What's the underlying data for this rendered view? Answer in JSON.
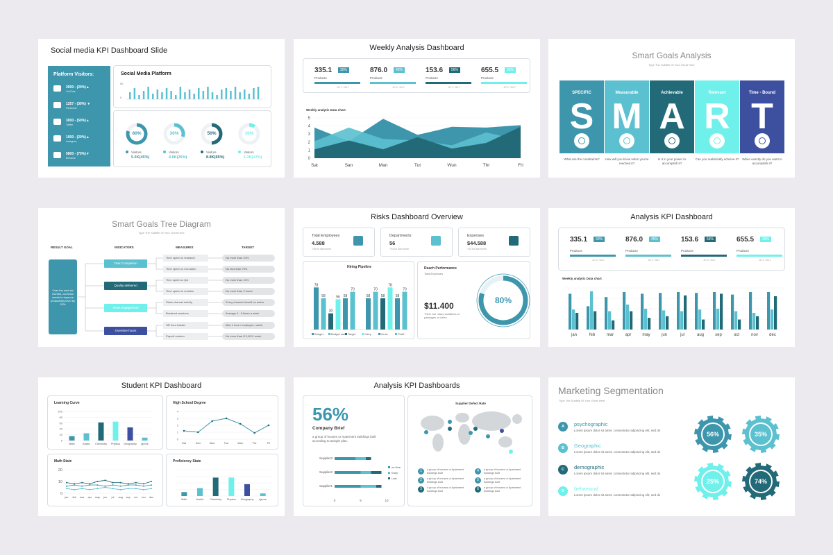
{
  "slides": {
    "social": {
      "title": "Social media KPI Dashboard Slide",
      "visitors_title": "Platform Visitors:",
      "platforms": [
        {
          "value": "2000 - (20%)▲",
          "name": "YouTube",
          "icon": "youtube-icon"
        },
        {
          "value": "1257 - (30%) ▼",
          "name": "Facebook",
          "icon": "facebook-icon"
        },
        {
          "value": "3000 - (50%)▲",
          "name": "Twitter",
          "icon": "twitter-icon"
        },
        {
          "value": "1000 - (20%)▲",
          "name": "Instagram",
          "icon": "instagram-icon"
        },
        {
          "value": "5800 - (70%)▼",
          "name": "Behance",
          "icon": "behance-icon"
        }
      ],
      "platform_chart_title": "Social Media Platform",
      "platform_axis": [
        "50",
        "0"
      ],
      "platform_bars": [
        0.5,
        0.8,
        0.3,
        0.6,
        0.9,
        0.4,
        0.7,
        0.5,
        0.8,
        0.6,
        0.3,
        0.9,
        0.5,
        0.7,
        0.4,
        0.8,
        0.6,
        0.9,
        0.5,
        0.3,
        0.7,
        0.8,
        0.6,
        0.9,
        0.5,
        0.7,
        0.4,
        0.8,
        0.9
      ],
      "donuts": [
        {
          "pct": "80%",
          "value": 0.8,
          "label": "Visitors",
          "stat": "5.6K(45%)",
          "color": "#3e96ad"
        },
        {
          "pct": "30%",
          "value": 0.3,
          "label": "Visitors",
          "stat": "4.6K(25%)",
          "color": "#5bc0cf"
        },
        {
          "pct": "50%",
          "value": 0.5,
          "label": "Visitors",
          "stat": "8.8K(65%)",
          "color": "#236a78"
        },
        {
          "pct": "10%",
          "value": 0.1,
          "label": "Visitors",
          "stat": "1.3K(12%)",
          "color": "#70f0ea"
        }
      ]
    },
    "weekly": {
      "title": "Weekly Analysis Dashboard",
      "kpis": [
        {
          "value": "335.1",
          "badge": "30%",
          "label": "Products",
          "foot": "-67.1 +34.7",
          "color": "#3e96ad"
        },
        {
          "value": "876.0",
          "badge": "45%",
          "label": "Products",
          "foot": "-67.1 +34.7",
          "color": "#5bc0cf"
        },
        {
          "value": "153.6",
          "badge": "56%",
          "label": "Products",
          "foot": "-67.1 +34.7",
          "color": "#236a78"
        },
        {
          "value": "655.5",
          "badge": "33%",
          "label": "Products",
          "foot": "-67.1 +34.7",
          "color": "#70f0ea"
        }
      ],
      "chart_label": "Weekly analytic Data chart",
      "chart_data": {
        "type": "area",
        "categories": [
          "Sat",
          "San",
          "Man",
          "Tut",
          "Wun",
          "Thr",
          "Fri"
        ],
        "yticks": [
          "5",
          "4",
          "3",
          "2",
          "1",
          "0"
        ],
        "ylim": [
          0,
          5
        ],
        "series": [
          {
            "values": [
              3.8,
              2.1,
              4.9,
              2.9,
              3.9,
              3.8,
              4.1
            ],
            "color": "#3e96ad"
          },
          {
            "values": [
              2.1,
              3.8,
              2.4,
              2.2,
              1.6,
              3.2,
              2.2
            ],
            "color": "#5bc0cf"
          },
          {
            "values": [
              1.1,
              2.2,
              1.1,
              2.6,
              1.2,
              1.9,
              3.9
            ],
            "color": "#236a78"
          }
        ]
      }
    },
    "smart": {
      "title": "Smart Goals Analysis",
      "subtitle": "Type The Subtitle Of Your Great Here",
      "cols": [
        {
          "head": "SPECIFIC",
          "letter": "S",
          "q": "What are the constraints?",
          "color": "#3e96ad",
          "icon": "target-icon"
        },
        {
          "head": "Measurable",
          "letter": "M",
          "q": "How will you know when you've reached it?",
          "color": "#5bc0cf",
          "icon": "bar-chart-icon"
        },
        {
          "head": "Achievable",
          "letter": "A",
          "q": "Is it in your power to accomplish it?",
          "color": "#236a78",
          "icon": "gear-icon"
        },
        {
          "head": "Relevant",
          "letter": "R",
          "q": "Can you realistically achieve it?",
          "color": "#70f0ea",
          "icon": "lightbulb-icon"
        },
        {
          "head": "Time - Bound",
          "letter": "T",
          "q": "When exactly do you want to accomplish it?",
          "color": "#3d50a0",
          "icon": "clock-icon"
        }
      ]
    },
    "tree": {
      "title": "Smart Goals Tree Diagram",
      "subtitle": "Type The Subtitle Of Your Great Here",
      "headers": [
        "RESULT GOAL",
        "INDICATORS",
        "MEASURES",
        "TARGET"
      ],
      "goal": "Over the next six months, our team needs to improve productivity level by 20%",
      "indicators": [
        {
          "label": "Task Completion",
          "color": "#5bc0cf"
        },
        {
          "label": "Quality delivered",
          "color": "#236a78"
        },
        {
          "label": "Team engagement",
          "color": "#70f0ea"
        },
        {
          "label": "Overtime hours",
          "color": "#3d50a0"
        }
      ],
      "measures": [
        "Time spent on research",
        "Time spent on execution",
        "Time spent on QA",
        "Time spent on revision",
        "Slack channel activity",
        "Breakout sessions",
        "HR hour tracker",
        "Payroll number"
      ],
      "targets": [
        "No more than 20%",
        "No less than 75%",
        "No more than 10%",
        "No more than 2 hours",
        "Every channel should be active",
        "Average 4 - 6 times a week",
        "Max 1 hour / employee / week",
        "No more than $ 3,000 / week"
      ]
    },
    "risks": {
      "title": "Risks Dashboard Overview",
      "cards": [
        {
          "label": "Total Employees",
          "value": "4.588",
          "foot": "+34 for last month",
          "icon": "org-chart-icon"
        },
        {
          "label": "Departments",
          "value": "56",
          "foot": "+34 for last month",
          "icon": "building-icon"
        },
        {
          "label": "Expenses",
          "value": "$44.588",
          "foot": "+34 for last month",
          "icon": "dollar-icon"
        }
      ],
      "pipeline_title": "Hiring Pipeline",
      "pipeline_data": {
        "type": "bar",
        "groups": [
          {
            "values": [
              78,
              58,
              30,
              56,
              58,
              70
            ]
          },
          {
            "values": [
              58,
              70,
              58,
              78,
              58,
              70
            ]
          }
        ],
        "ylim": [
          0,
          90
        ]
      },
      "legend": [
        "Budget",
        "Budget used",
        "Target",
        "Carry",
        "Grow",
        "Profit"
      ],
      "legend_colors": [
        "#3e96ad",
        "#5bc0cf",
        "#236a78",
        "#70f0ea",
        "#3e96ad",
        "#5bc0cf"
      ],
      "reach_title": "Reach Performance",
      "reach_sub": "Total Expenses",
      "reach_value": "$11.400",
      "reach_note": "There are many variations of passages of lorem",
      "reach_pct": "80%",
      "reach_fraction": 0.8
    },
    "analysis": {
      "title": "Analysis KPI Dashboard",
      "kpis": [
        {
          "value": "335.1",
          "badge": "30%",
          "label": "Products",
          "foot": "-67.1 +34.7",
          "color": "#3e96ad"
        },
        {
          "value": "876.0",
          "badge": "45%",
          "label": "Products",
          "foot": "-67.1 +34.7",
          "color": "#5bc0cf"
        },
        {
          "value": "153.6",
          "badge": "56%",
          "label": "Products",
          "foot": "-67.1 +34.7",
          "color": "#236a78"
        },
        {
          "value": "655.5",
          "badge": "33%",
          "label": "Products",
          "foot": "-67.1 +34.7",
          "color": "#70f0ea"
        }
      ],
      "chart_label": "Weekly analytic Data chart",
      "chart_data": {
        "type": "bar",
        "categories": [
          "jan",
          "feb",
          "mar",
          "apr",
          "may",
          "jun",
          "jul",
          "aug",
          "sep",
          "oct",
          "nov",
          "dec"
        ],
        "ylim": [
          0,
          5
        ],
        "series": [
          {
            "values": [
              4.3,
              2.8,
              3.9,
              4.5,
              4.3,
              4.4,
              4.5,
              4.4,
              4.5,
              4.2,
              4.5,
              4.5
            ],
            "color": "#3e96ad"
          },
          {
            "values": [
              2.4,
              4.6,
              2.2,
              3.0,
              2.5,
              2.3,
              2.2,
              2.4,
              2.5,
              2.2,
              2.0,
              2.4
            ],
            "color": "#5bc0cf"
          },
          {
            "values": [
              2.0,
              2.2,
              1.1,
              2.2,
              1.4,
              1.6,
              4.1,
              1.2,
              4.3,
              1.2,
              1.6,
              4.0
            ],
            "color": "#236a78"
          }
        ]
      }
    },
    "student": {
      "title": "Student KPI Dashboard",
      "learning": {
        "title": "Learning Curve",
        "chart_data": {
          "type": "bar",
          "categories": [
            "Math",
            "Arabic",
            "Chemistry",
            "Physics",
            "Geography",
            "Ignore"
          ],
          "values": [
            15,
            25,
            62,
            65,
            45,
            10
          ],
          "colors": [
            "#3e96ad",
            "#5bc0cf",
            "#236a78",
            "#70f0ea",
            "#3d50a0",
            "#5bc0cf"
          ],
          "ylim": [
            0,
            100
          ],
          "yticks": [
            "100",
            "80",
            "60",
            "40",
            "20",
            "0"
          ]
        }
      },
      "highschool": {
        "title": "High School Degree",
        "chart_data": {
          "type": "line",
          "categories": [
            "Sat",
            "San",
            "Mon",
            "Tue",
            "Wen",
            "Thr",
            "Fri"
          ],
          "values": [
            1.2,
            1.0,
            2.6,
            3.0,
            2.2,
            0.9,
            2.0
          ],
          "ylim": [
            0,
            4
          ],
          "yticks": [
            "4",
            "3",
            "2",
            "1",
            "0"
          ]
        }
      },
      "math": {
        "title": "Math State",
        "chart_data": {
          "type": "line",
          "categories": [
            "jan",
            "feb",
            "mar",
            "apr",
            "may",
            "jun",
            "jul",
            "aug",
            "sep",
            "oct",
            "nov",
            "dec"
          ],
          "series": [
            {
              "values": [
                9,
                8,
                9,
                8,
                10,
                11,
                9,
                9,
                8,
                9,
                8,
                10
              ],
              "color": "#236a78"
            },
            {
              "values": [
                6,
                7,
                6,
                7,
                7,
                6,
                7,
                6,
                7,
                7,
                6,
                7
              ],
              "color": "#3e96ad"
            },
            {
              "values": [
                4,
                3,
                4,
                3,
                4,
                5,
                4,
                3,
                4,
                4,
                3,
                4
              ],
              "color": "#5bc0cf"
            }
          ],
          "ylim": [
            0,
            20
          ],
          "yticks": [
            "20",
            "10",
            "0"
          ]
        }
      },
      "proficiency": {
        "title": "Proficiency State",
        "chart_data": {
          "type": "bar",
          "categories": [
            "Math",
            "Arabic",
            "Chemistry",
            "Physics",
            "Geography",
            "Ignore"
          ],
          "values": [
            15,
            30,
            70,
            70,
            45,
            10
          ],
          "colors": [
            "#3e96ad",
            "#5bc0cf",
            "#236a78",
            "#70f0ea",
            "#3d50a0",
            "#5bc0cf"
          ],
          "ylim": [
            0,
            100
          ]
        }
      }
    },
    "analysis2": {
      "title": "Analysis KPI Dashboards",
      "big": "56%",
      "brief": "Company Brief",
      "brief_text": "a group of houses or Apartment buildings built according to asingle plan.",
      "suppliers": [
        "Supplier3",
        "Supplier2",
        "Supplier1"
      ],
      "supplier_data": {
        "type": "bar",
        "series": [
          {
            "name": "on time",
            "values": [
              4,
              5,
              5
            ],
            "color": "#3e96ad"
          },
          {
            "name": "Early",
            "values": [
              2,
              2,
              3
            ],
            "color": "#5bc0cf"
          },
          {
            "name": "Late",
            "values": [
              1,
              2,
              1
            ],
            "color": "#236a78"
          }
        ],
        "xlim": [
          0,
          10
        ],
        "xticks": [
          "0",
          "5",
          "10"
        ]
      },
      "map_title": "Supplier Defect Rate",
      "map_items": [
        {
          "n": "1",
          "text": "a group of houses or Apartment buildings built"
        },
        {
          "n": "2",
          "text": "a group of houses or Apartment buildings built"
        },
        {
          "n": "3",
          "text": "a group of houses or Apartment buildings built"
        },
        {
          "n": "4",
          "text": "a group of houses or Apartment buildings built"
        },
        {
          "n": "5",
          "text": "a group of houses or Apartment buildings built"
        },
        {
          "n": "6",
          "text": "a group of houses or Apartment buildings built"
        }
      ]
    },
    "marketing": {
      "title": "Marketing Segmentation",
      "subtitle": "Type The Subtitle Of Your Great Here",
      "items": [
        {
          "letter": "A",
          "name": "psychographic",
          "text": "Lorem ipsum dolor sit amet, consectetur adipiscing elit, sed do",
          "color": "#3e96ad"
        },
        {
          "letter": "B",
          "name": "Geographic",
          "text": "Lorem ipsum dolor sit amet, consectetur adipiscing elit, sed do",
          "color": "#5bc0cf"
        },
        {
          "letter": "C",
          "name": "demographic",
          "text": "Lorem ipsum dolor sit amet, consectetur adipiscing elit, sed do",
          "color": "#236a78"
        },
        {
          "letter": "D",
          "name": "behavioral",
          "text": "Lorem ipsum dolor sit amet, consectetur adipiscing elit, sed do",
          "color": "#70f0ea"
        }
      ],
      "gears": [
        {
          "pct": "56%",
          "color": "#3e96ad"
        },
        {
          "pct": "35%",
          "color": "#5bc0cf"
        },
        {
          "pct": "25%",
          "color": "#70f0ea"
        },
        {
          "pct": "74%",
          "color": "#236a78"
        }
      ]
    }
  }
}
